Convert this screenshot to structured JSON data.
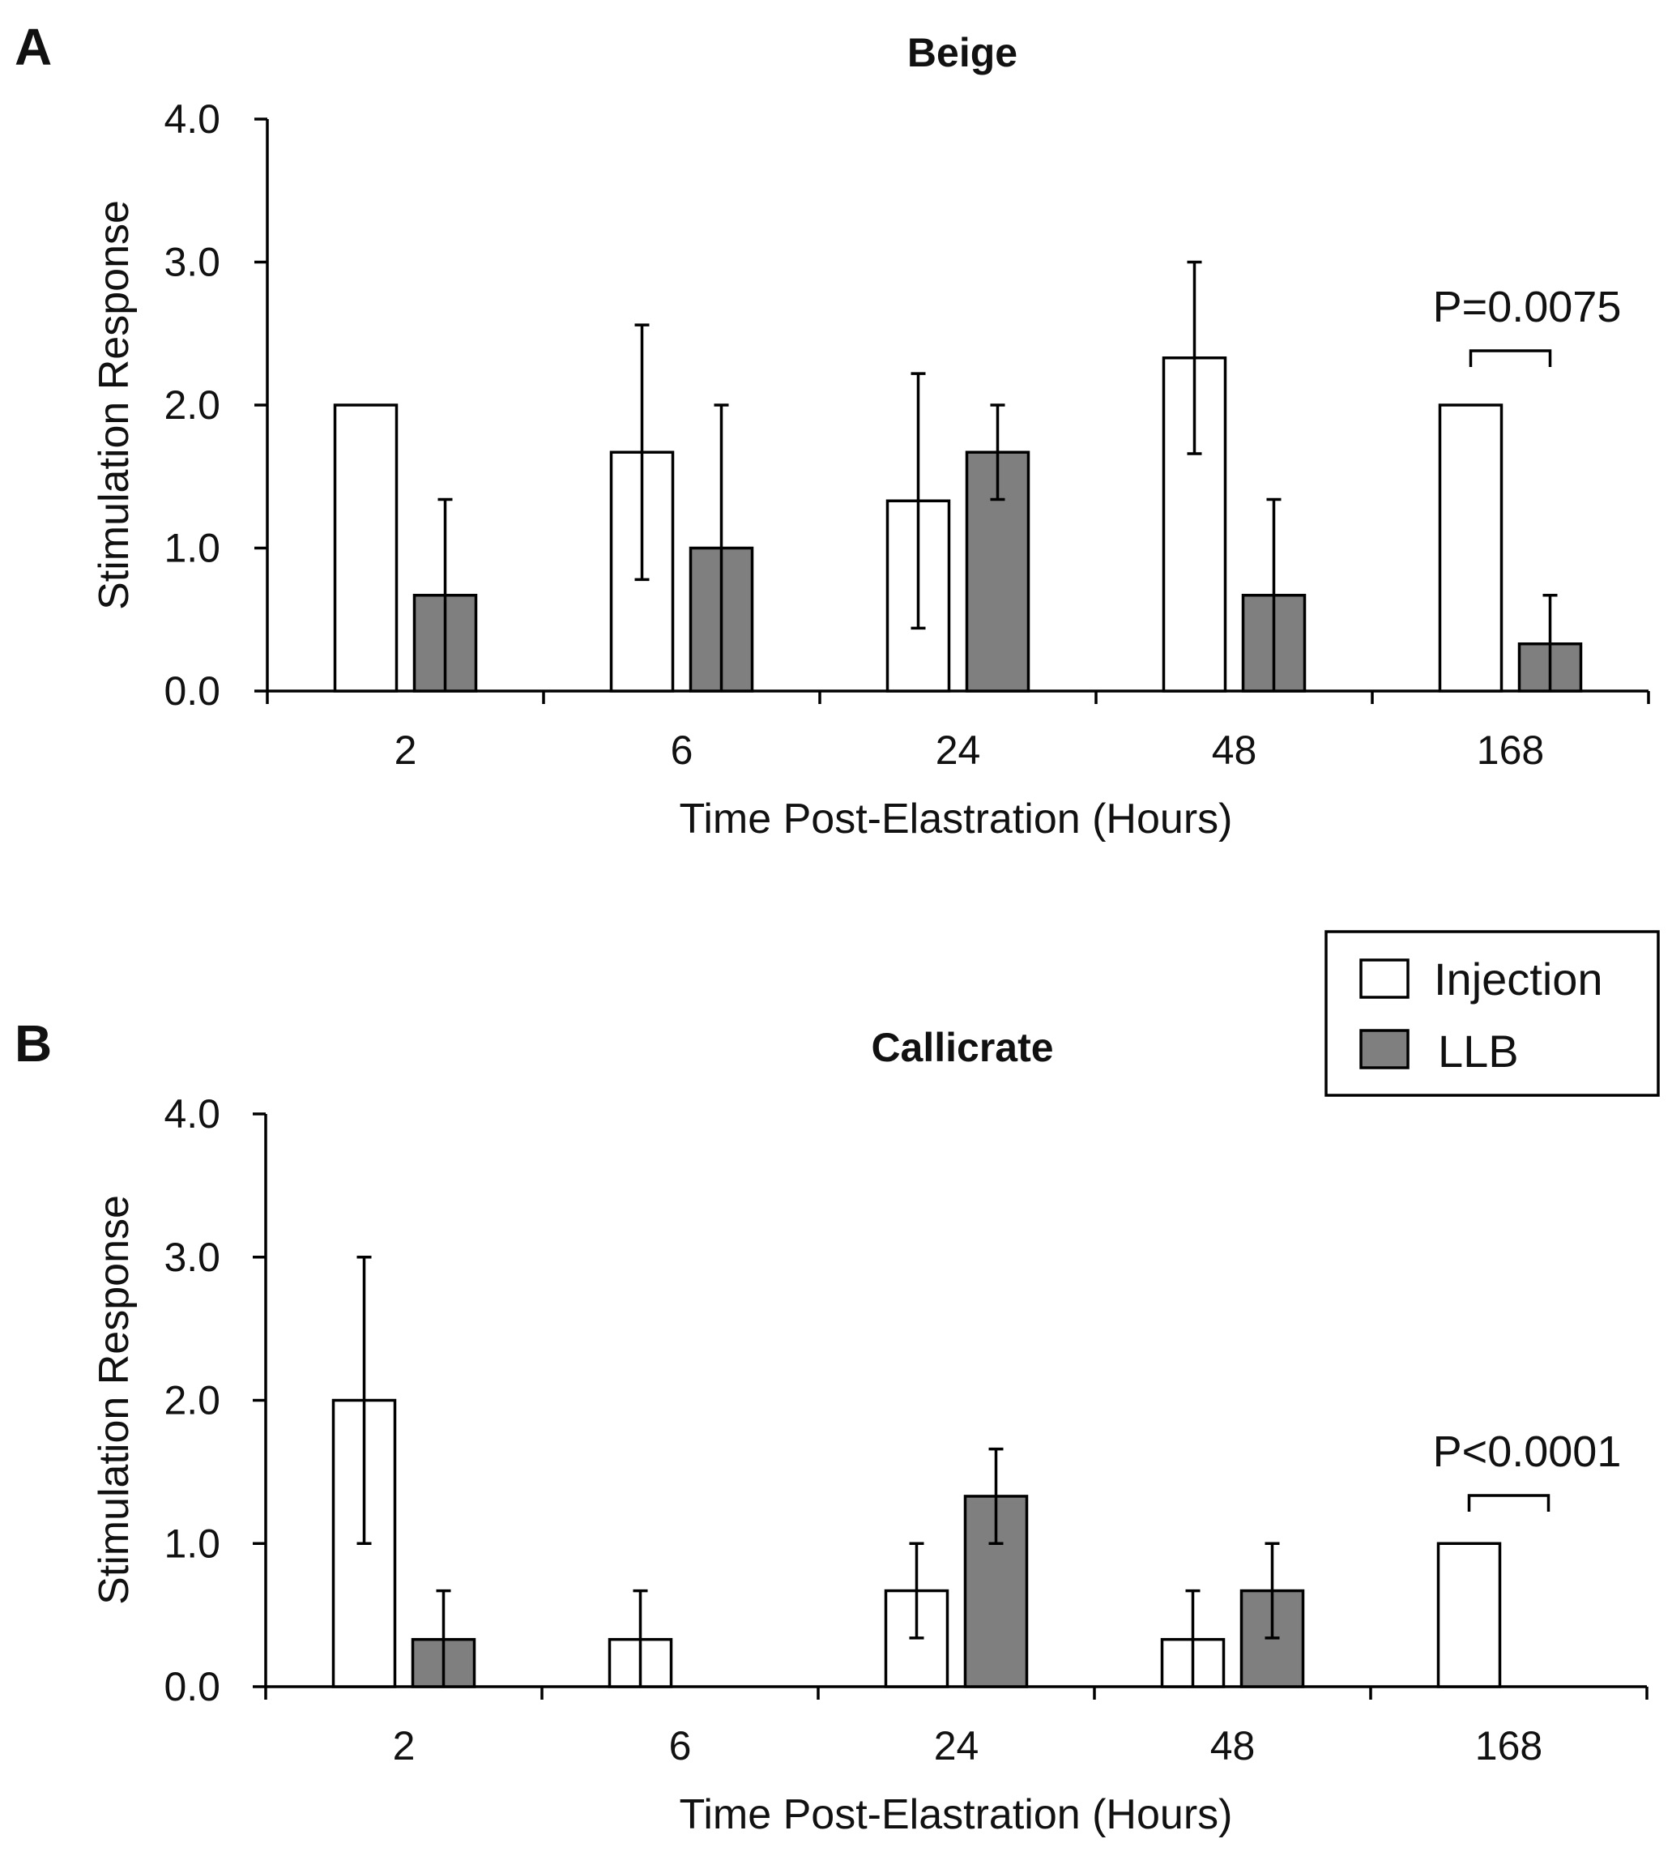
{
  "legend": {
    "items": [
      {
        "label": "Injection",
        "color": "#ffffff"
      },
      {
        "label": "LLB",
        "color": "#7f7f7f"
      }
    ]
  },
  "chart_data": [
    {
      "panel": "A",
      "type": "bar",
      "title": "Beige",
      "xlabel": "Time Post-Elastration (Hours)",
      "ylabel": "Stimulation Response",
      "ylim": [
        0,
        4
      ],
      "yticks": [
        "0.0",
        "1.0",
        "2.0",
        "3.0",
        "4.0"
      ],
      "categories": [
        "2",
        "6",
        "24",
        "48",
        "168"
      ],
      "series": [
        {
          "name": "Injection",
          "color": "#ffffff",
          "values": [
            2.0,
            1.67,
            1.33,
            2.33,
            2.0
          ],
          "errors": [
            0,
            0.89,
            0.89,
            0.67,
            0
          ]
        },
        {
          "name": "LLB",
          "color": "#7f7f7f",
          "values": [
            0.67,
            1.0,
            1.67,
            0.67,
            0.33
          ],
          "errors": [
            0.67,
            1.0,
            0.33,
            0.67,
            0.34
          ]
        }
      ],
      "annotation": {
        "text": "P=0.0075",
        "category_index": 4
      }
    },
    {
      "panel": "B",
      "type": "bar",
      "title": "Callicrate",
      "xlabel": "Time Post-Elastration (Hours)",
      "ylabel": "Stimulation Response",
      "ylim": [
        0,
        4
      ],
      "yticks": [
        "0.0",
        "1.0",
        "2.0",
        "3.0",
        "4.0"
      ],
      "categories": [
        "2",
        "6",
        "24",
        "48",
        "168"
      ],
      "series": [
        {
          "name": "Injection",
          "color": "#ffffff",
          "values": [
            2.0,
            0.33,
            0.67,
            0.33,
            1.0
          ],
          "errors": [
            1.0,
            0.34,
            0.33,
            0.34,
            0
          ]
        },
        {
          "name": "LLB",
          "color": "#7f7f7f",
          "values": [
            0.33,
            0,
            1.33,
            0.67,
            0
          ],
          "errors": [
            0.34,
            0,
            0.33,
            0.33,
            0
          ]
        }
      ],
      "annotation": {
        "text": "P<0.0001",
        "category_index": 4
      }
    }
  ]
}
